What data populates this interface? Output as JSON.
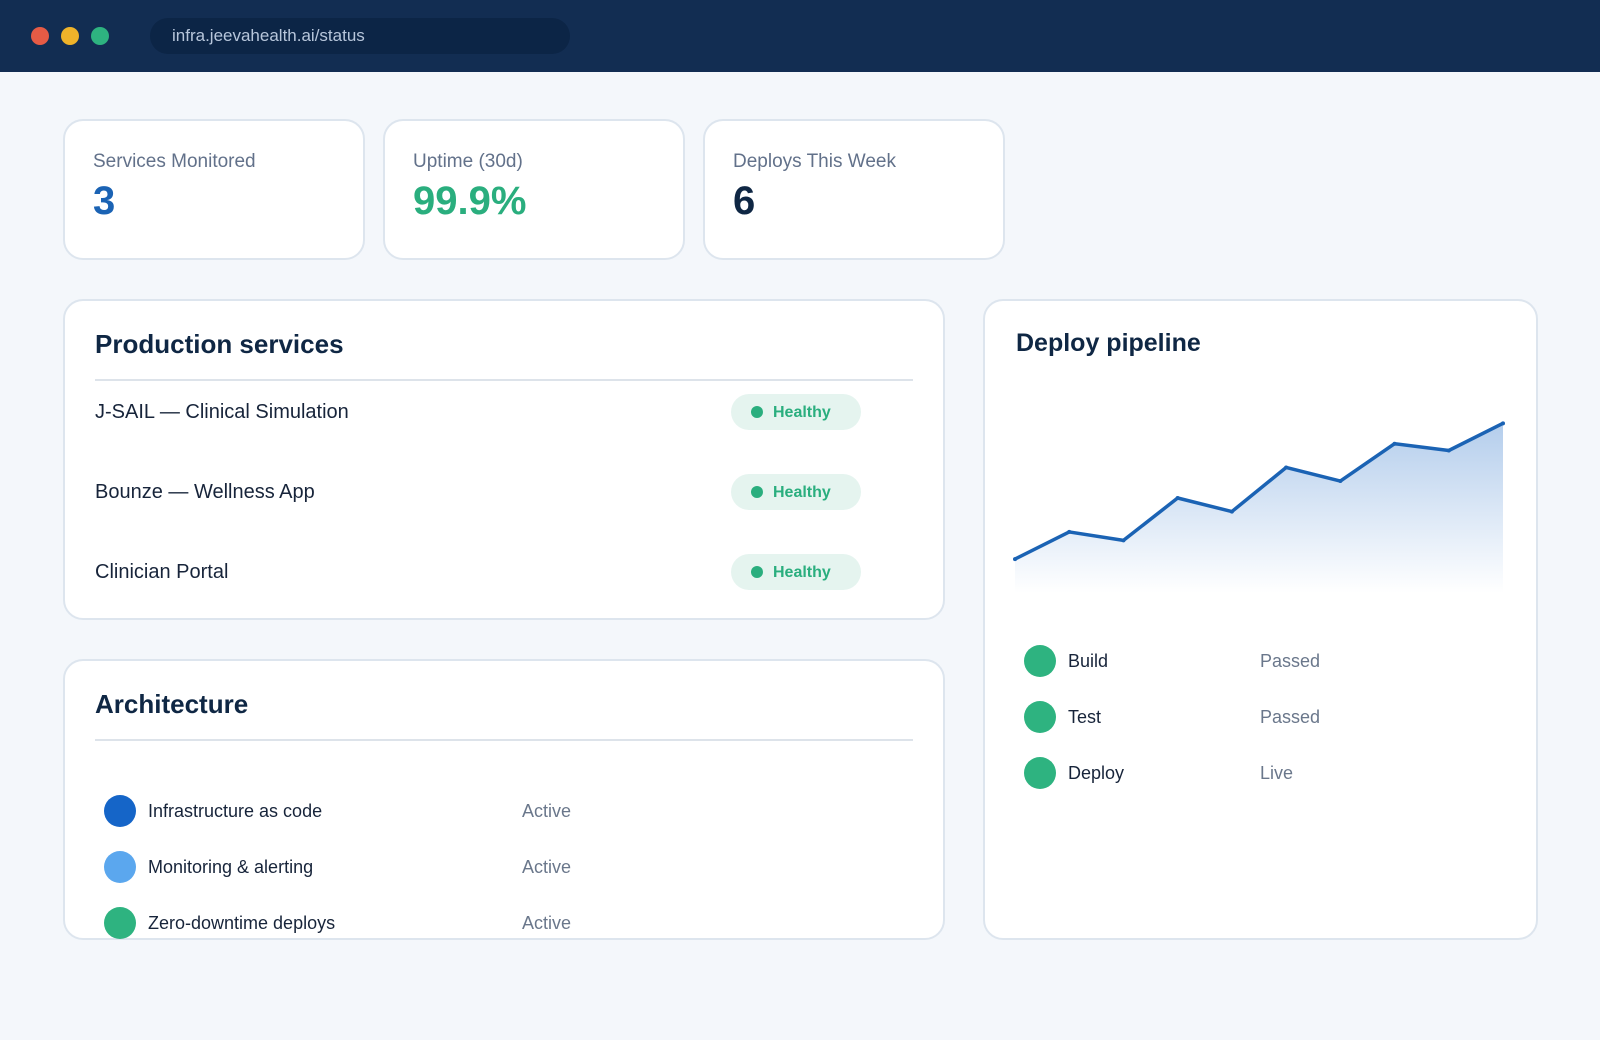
{
  "browser": {
    "url": "infra.jeevahealth.ai/status",
    "controls": {
      "close_color": "#e65b45",
      "minimize_color": "#efb32a",
      "zoom_color": "#2eb380"
    }
  },
  "stats": [
    {
      "label": "Services Monitored",
      "value": "3",
      "color": "#1b63b4"
    },
    {
      "label": "Uptime (30d)",
      "value": "99.9%",
      "color": "#2aae7e"
    },
    {
      "label": "Deploys This Week",
      "value": "6",
      "color": "#0f2744"
    }
  ],
  "production_services": {
    "title": "Production services",
    "items": [
      {
        "name": "J-SAIL — Clinical Simulation",
        "status": "Healthy"
      },
      {
        "name": "Bounze — Wellness App",
        "status": "Healthy"
      },
      {
        "name": "Clinician Portal",
        "status": "Healthy"
      }
    ],
    "healthy_color": "#2aae7e"
  },
  "architecture": {
    "title": "Architecture",
    "items": [
      {
        "label": "Infrastructure as code",
        "status": "Active",
        "color": "#1565c8"
      },
      {
        "label": "Monitoring & alerting",
        "status": "Active",
        "color": "#5ba7ee"
      },
      {
        "label": "Zero-downtime deploys",
        "status": "Active",
        "color": "#2eb380"
      }
    ]
  },
  "deploy_pipeline": {
    "title": "Deploy pipeline",
    "stages": [
      {
        "label": "Build",
        "status": "Passed",
        "color": "#2eb380"
      },
      {
        "label": "Test",
        "status": "Passed",
        "color": "#2eb380"
      },
      {
        "label": "Deploy",
        "status": "Live",
        "color": "#2eb380"
      }
    ]
  },
  "chart_data": {
    "type": "area",
    "x": [
      1,
      2,
      3,
      4,
      5,
      6,
      7,
      8,
      9,
      10
    ],
    "series": [
      {
        "values": [
          1.0,
          1.8,
          1.55,
          2.8,
          2.4,
          3.7,
          3.3,
          4.4,
          4.2,
          5.0
        ]
      }
    ],
    "ylim": [
      0,
      5.6
    ],
    "grid": false,
    "line_color": "#1b63b4",
    "fill_color": "#9bbde6"
  }
}
